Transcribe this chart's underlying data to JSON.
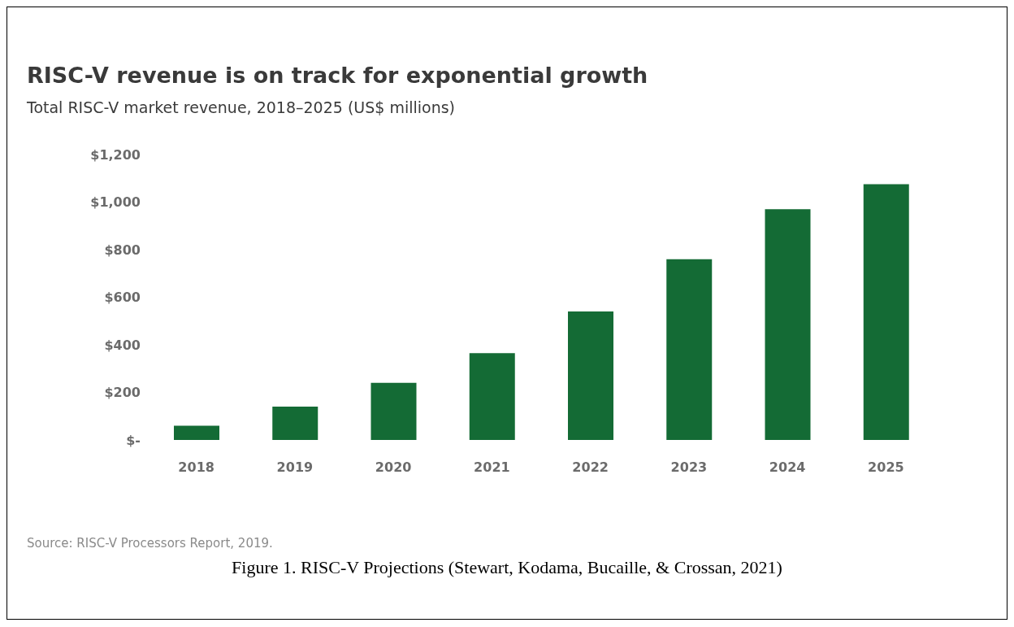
{
  "chart_data": {
    "type": "bar",
    "title": "RISC-V revenue is on track for exponential growth",
    "subtitle": "Total RISC-V market revenue, 2018–2025 (US$ millions)",
    "categories": [
      "2018",
      "2019",
      "2020",
      "2021",
      "2022",
      "2023",
      "2024",
      "2025"
    ],
    "values": [
      60,
      140,
      240,
      365,
      540,
      760,
      970,
      1075
    ],
    "color": "#146b35",
    "ylim": [
      0,
      1200
    ],
    "yticks": [
      {
        "value": 0,
        "label": "$-"
      },
      {
        "value": 200,
        "label": "$200"
      },
      {
        "value": 400,
        "label": "$400"
      },
      {
        "value": 600,
        "label": "$600"
      },
      {
        "value": 800,
        "label": "$800"
      },
      {
        "value": 1000,
        "label": "$1,000"
      },
      {
        "value": 1200,
        "label": "$1,200"
      }
    ],
    "grid": false,
    "legend": false,
    "annotations": [
      "Source: RISC-V Processors Report, 2019.",
      "Figure 1. RISC-V Projections (Stewart, Kodama, Bucaille, & Crossan, 2021)"
    ]
  }
}
